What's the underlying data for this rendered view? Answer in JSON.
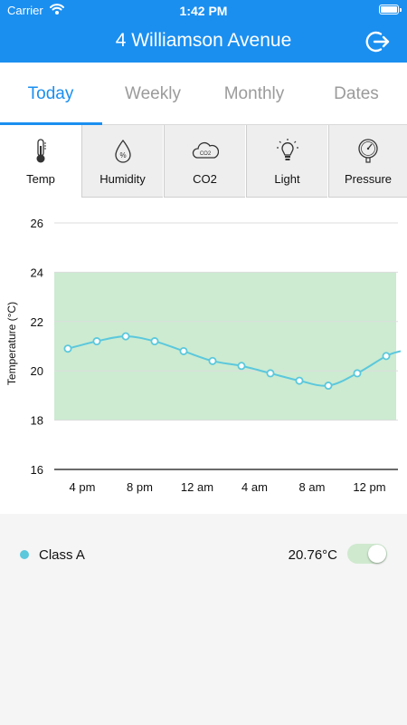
{
  "status_bar": {
    "carrier": "Carrier",
    "time": "1:42 PM"
  },
  "header": {
    "title": "4 Williamson Avenue",
    "action_icon": "logout-icon"
  },
  "tabs": [
    {
      "label": "Today",
      "active": true
    },
    {
      "label": "Weekly",
      "active": false
    },
    {
      "label": "Monthly",
      "active": false
    },
    {
      "label": "Dates",
      "active": false
    }
  ],
  "metrics": [
    {
      "label": "Temp",
      "icon": "thermometer-icon",
      "active": true
    },
    {
      "label": "Humidity",
      "icon": "humidity-icon",
      "active": false
    },
    {
      "label": "CO2",
      "icon": "co2-icon",
      "active": false
    },
    {
      "label": "Light",
      "icon": "lightbulb-icon",
      "active": false
    },
    {
      "label": "Pressure",
      "icon": "pressure-gauge-icon",
      "active": false
    }
  ],
  "chart_data": {
    "type": "line",
    "ylabel": "Temperature (°C)",
    "ylim": [
      16,
      26
    ],
    "yticks": [
      "16",
      "18",
      "20",
      "22",
      "24",
      "26"
    ],
    "xticks": [
      "4 pm",
      "8 pm",
      "12 am",
      "4 am",
      "8 am",
      "12 pm"
    ],
    "band": [
      18,
      24
    ],
    "band_color": "#ccebd1",
    "line_color": "#5bc8dc",
    "grid": true,
    "series": [
      {
        "name": "Class A",
        "hours": [
          -1,
          1,
          3,
          5,
          7,
          9,
          11,
          13,
          15,
          17,
          19,
          21,
          22
        ],
        "values": [
          20.9,
          21.2,
          21.4,
          21.2,
          20.8,
          20.4,
          20.2,
          19.9,
          19.6,
          19.4,
          19.9,
          20.6,
          20.8
        ]
      }
    ]
  },
  "legend": [
    {
      "label": "Class A",
      "value": "20.76°C",
      "color": "#5bc8dc",
      "enabled": true
    }
  ]
}
